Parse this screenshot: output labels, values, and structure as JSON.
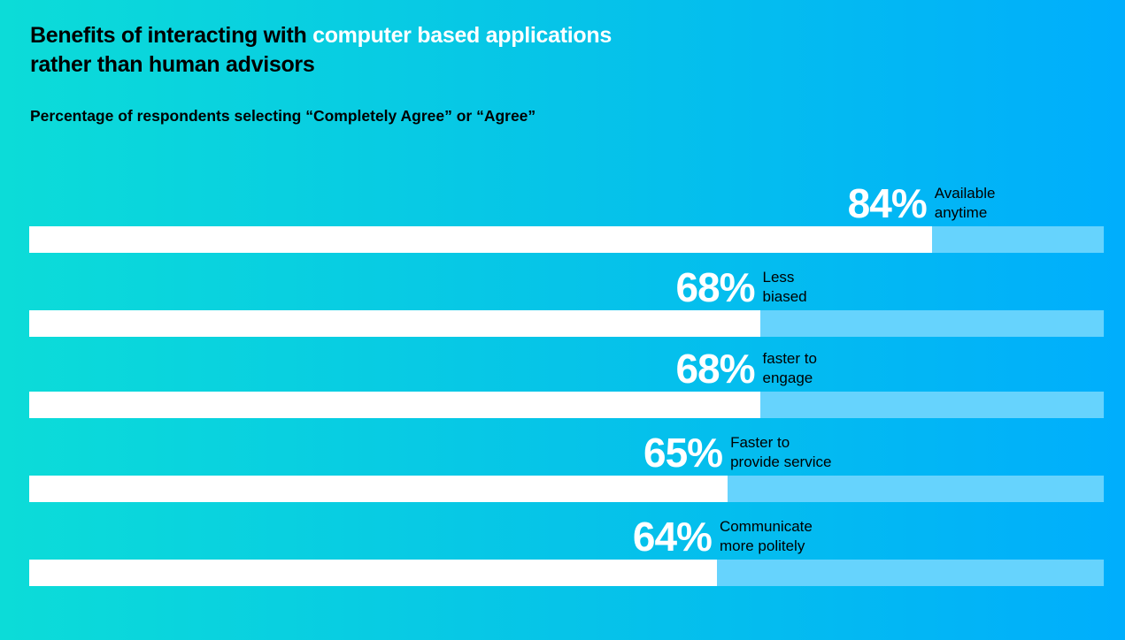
{
  "header": {
    "title_prefix": "Benefits of interacting with ",
    "title_highlight": "computer based applications",
    "title_suffix": "rather than human advisors",
    "subtitle": "Percentage of respondents selecting “Completely Agree” or “Agree”"
  },
  "colors": {
    "background_start": "#0cdcd8",
    "background_end": "#00aefc",
    "bar_fill": "#ffffff",
    "bar_track": "#66d3fd",
    "title_highlight": "#ffffff"
  },
  "chart_data": {
    "type": "bar",
    "orientation": "horizontal",
    "xlim": [
      0,
      100
    ],
    "unit": "%",
    "bars": [
      {
        "value": 84,
        "value_label": "84%",
        "label_line1": "Available",
        "label_line2": "anytime"
      },
      {
        "value": 68,
        "value_label": "68%",
        "label_line1": "Less",
        "label_line2": "biased"
      },
      {
        "value": 68,
        "value_label": "68%",
        "label_line1": "faster to",
        "label_line2": "engage"
      },
      {
        "value": 65,
        "value_label": "65%",
        "label_line1": "Faster to",
        "label_line2": "provide service"
      },
      {
        "value": 64,
        "value_label": "64%",
        "label_line1": "Communicate",
        "label_line2": "more politely"
      }
    ]
  }
}
